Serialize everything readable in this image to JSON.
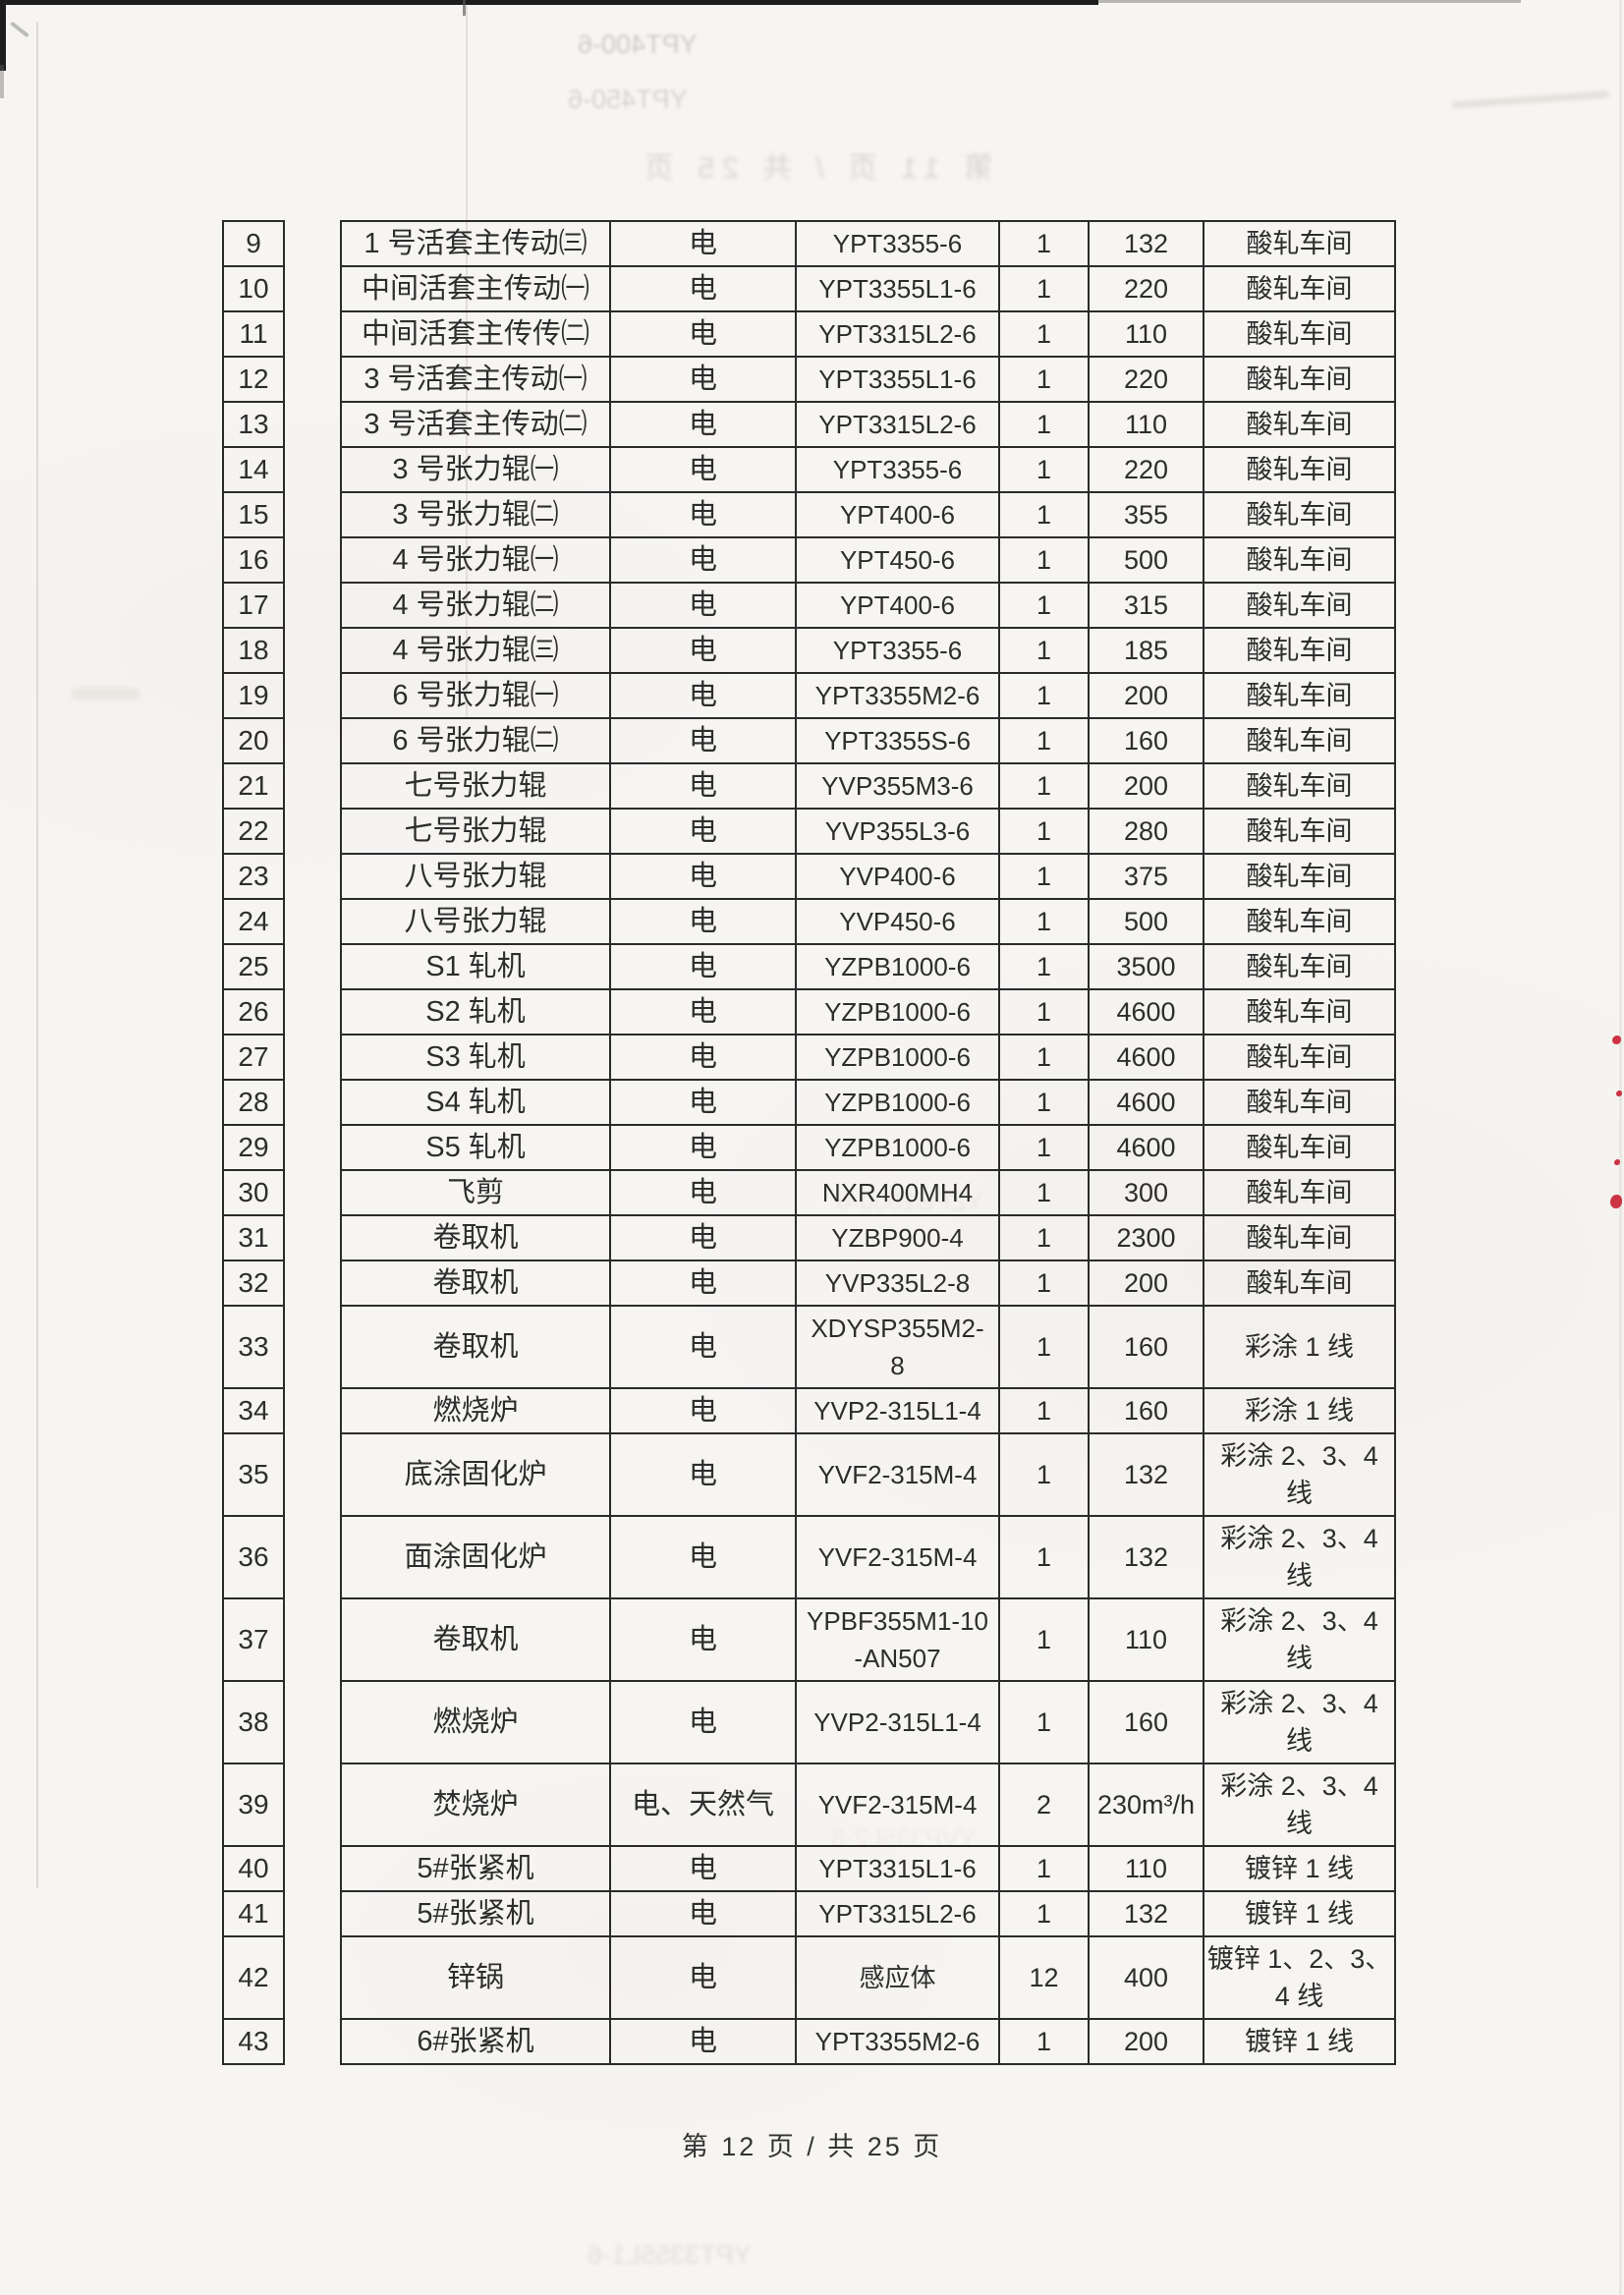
{
  "colors": {
    "red_mark": "#cc3344",
    "table_border": "#2b2b2b",
    "text": "#2d2d2d",
    "page_bg": "#f7f5f2"
  },
  "footer": {
    "text": "第 12 页 / 共 25 页"
  },
  "ghosts": {
    "model_a": "YPT400-6",
    "model_b": "YPT450-6",
    "footer_prev": "第 11 页 / 共 25 页",
    "model_c": "YZPB1000-6",
    "model_d": "YVP335L2-8",
    "bottom": "YPT3355L1-6"
  },
  "table": {
    "rows": [
      {
        "no": "9",
        "name": "1 号活套主传动㈢",
        "energy": "电",
        "model": "YPT3355-6",
        "qty": "1",
        "power": "132",
        "location": "酸轧车间"
      },
      {
        "no": "10",
        "name": "中间活套主传动㈠",
        "energy": "电",
        "model": "YPT3355L1-6",
        "qty": "1",
        "power": "220",
        "location": "酸轧车间"
      },
      {
        "no": "11",
        "name": "中间活套主传传㈡",
        "energy": "电",
        "model": "YPT3315L2-6",
        "qty": "1",
        "power": "110",
        "location": "酸轧车间"
      },
      {
        "no": "12",
        "name": "3 号活套主传动㈠",
        "energy": "电",
        "model": "YPT3355L1-6",
        "qty": "1",
        "power": "220",
        "location": "酸轧车间"
      },
      {
        "no": "13",
        "name": "3 号活套主传动㈡",
        "energy": "电",
        "model": "YPT3315L2-6",
        "qty": "1",
        "power": "110",
        "location": "酸轧车间"
      },
      {
        "no": "14",
        "name": "3 号张力辊㈠",
        "energy": "电",
        "model": "YPT3355-6",
        "qty": "1",
        "power": "220",
        "location": "酸轧车间"
      },
      {
        "no": "15",
        "name": "3 号张力辊㈡",
        "energy": "电",
        "model": "YPT400-6",
        "qty": "1",
        "power": "355",
        "location": "酸轧车间"
      },
      {
        "no": "16",
        "name": "4 号张力辊㈠",
        "energy": "电",
        "model": "YPT450-6",
        "qty": "1",
        "power": "500",
        "location": "酸轧车间"
      },
      {
        "no": "17",
        "name": "4 号张力辊㈡",
        "energy": "电",
        "model": "YPT400-6",
        "qty": "1",
        "power": "315",
        "location": "酸轧车间"
      },
      {
        "no": "18",
        "name": "4 号张力辊㈢",
        "energy": "电",
        "model": "YPT3355-6",
        "qty": "1",
        "power": "185",
        "location": "酸轧车间"
      },
      {
        "no": "19",
        "name": "6 号张力辊㈠",
        "energy": "电",
        "model": "YPT3355M2-6",
        "qty": "1",
        "power": "200",
        "location": "酸轧车间"
      },
      {
        "no": "20",
        "name": "6 号张力辊㈡",
        "energy": "电",
        "model": "YPT3355S-6",
        "qty": "1",
        "power": "160",
        "location": "酸轧车间"
      },
      {
        "no": "21",
        "name": "七号张力辊",
        "energy": "电",
        "model": "YVP355M3-6",
        "qty": "1",
        "power": "200",
        "location": "酸轧车间"
      },
      {
        "no": "22",
        "name": "七号张力辊",
        "energy": "电",
        "model": "YVP355L3-6",
        "qty": "1",
        "power": "280",
        "location": "酸轧车间"
      },
      {
        "no": "23",
        "name": "八号张力辊",
        "energy": "电",
        "model": "YVP400-6",
        "qty": "1",
        "power": "375",
        "location": "酸轧车间"
      },
      {
        "no": "24",
        "name": "八号张力辊",
        "energy": "电",
        "model": "YVP450-6",
        "qty": "1",
        "power": "500",
        "location": "酸轧车间"
      },
      {
        "no": "25",
        "name": "S1 轧机",
        "energy": "电",
        "model": "YZPB1000-6",
        "qty": "1",
        "power": "3500",
        "location": "酸轧车间"
      },
      {
        "no": "26",
        "name": "S2 轧机",
        "energy": "电",
        "model": "YZPB1000-6",
        "qty": "1",
        "power": "4600",
        "location": "酸轧车间"
      },
      {
        "no": "27",
        "name": "S3 轧机",
        "energy": "电",
        "model": "YZPB1000-6",
        "qty": "1",
        "power": "4600",
        "location": "酸轧车间"
      },
      {
        "no": "28",
        "name": "S4 轧机",
        "energy": "电",
        "model": "YZPB1000-6",
        "qty": "1",
        "power": "4600",
        "location": "酸轧车间"
      },
      {
        "no": "29",
        "name": "S5 轧机",
        "energy": "电",
        "model": "YZPB1000-6",
        "qty": "1",
        "power": "4600",
        "location": "酸轧车间"
      },
      {
        "no": "30",
        "name": "飞剪",
        "energy": "电",
        "model": "NXR400MH4",
        "qty": "1",
        "power": "300",
        "location": "酸轧车间"
      },
      {
        "no": "31",
        "name": "卷取机",
        "energy": "电",
        "model": "YZBP900-4",
        "qty": "1",
        "power": "2300",
        "location": "酸轧车间"
      },
      {
        "no": "32",
        "name": "卷取机",
        "energy": "电",
        "model": "YVP335L2-8",
        "qty": "1",
        "power": "200",
        "location": "酸轧车间"
      },
      {
        "no": "33",
        "name": "卷取机",
        "energy": "电",
        "model": "XDYSP355M2-\n8",
        "qty": "1",
        "power": "160",
        "location": "彩涂 1 线"
      },
      {
        "no": "34",
        "name": "燃烧炉",
        "energy": "电",
        "model": "YVP2-315L1-4",
        "qty": "1",
        "power": "160",
        "location": "彩涂 1 线"
      },
      {
        "no": "35",
        "name": "底涂固化炉",
        "energy": "电",
        "model": "YVF2-315M-4",
        "qty": "1",
        "power": "132",
        "location": "彩涂 2、3、4\n线"
      },
      {
        "no": "36",
        "name": "面涂固化炉",
        "energy": "电",
        "model": "YVF2-315M-4",
        "qty": "1",
        "power": "132",
        "location": "彩涂 2、3、4\n线"
      },
      {
        "no": "37",
        "name": "卷取机",
        "energy": "电",
        "model": "YPBF355M1-10\n-AN507",
        "qty": "1",
        "power": "110",
        "location": "彩涂 2、3、4\n线"
      },
      {
        "no": "38",
        "name": "燃烧炉",
        "energy": "电",
        "model": "YVP2-315L1-4",
        "qty": "1",
        "power": "160",
        "location": "彩涂 2、3、4\n线"
      },
      {
        "no": "39",
        "name": "焚烧炉",
        "energy": "电、天然气",
        "model": "YVF2-315M-4",
        "qty": "2",
        "power": "230m³/h",
        "location": "彩涂 2、3、4\n线"
      },
      {
        "no": "40",
        "name": "5#张紧机",
        "energy": "电",
        "model": "YPT3315L1-6",
        "qty": "1",
        "power": "110",
        "location": "镀锌 1 线"
      },
      {
        "no": "41",
        "name": "5#张紧机",
        "energy": "电",
        "model": "YPT3315L2-6",
        "qty": "1",
        "power": "132",
        "location": "镀锌 1 线"
      },
      {
        "no": "42",
        "name": "锌锅",
        "energy": "电",
        "model": "感应体",
        "qty": "12",
        "power": "400",
        "location": "镀锌 1、2、3、\n4 线"
      },
      {
        "no": "43",
        "name": "6#张紧机",
        "energy": "电",
        "model": "YPT3355M2-6",
        "qty": "1",
        "power": "200",
        "location": "镀锌 1 线"
      }
    ]
  }
}
